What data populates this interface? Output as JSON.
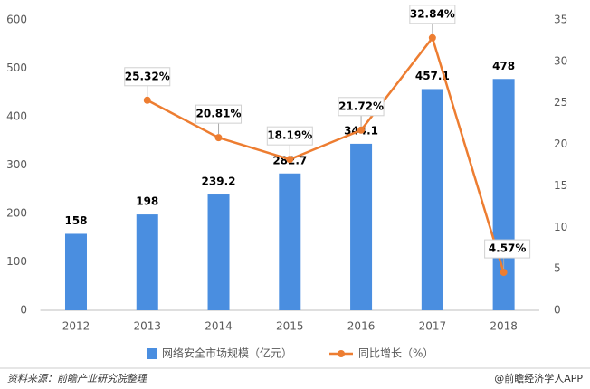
{
  "chart_data": {
    "type": "bar",
    "categories": [
      "2012",
      "2013",
      "2014",
      "2015",
      "2016",
      "2017",
      "2018"
    ],
    "series": [
      {
        "name": "网络安全市场规模（亿元）",
        "type": "bar",
        "color": "#4a8ee0",
        "values": [
          158,
          198,
          239.2,
          282.7,
          344.1,
          457.1,
          478
        ]
      },
      {
        "name": "同比增长（%）",
        "type": "line",
        "axis": "y2",
        "color": "#ed7d31",
        "values": [
          null,
          25.32,
          20.81,
          18.19,
          21.72,
          32.84,
          4.57
        ],
        "value_labels": [
          null,
          "25.32%",
          "20.81%",
          "18.19%",
          "21.72%",
          "32.84%",
          "4.57%"
        ]
      }
    ],
    "ylim": [
      0,
      600
    ],
    "yticks": [
      0,
      100,
      200,
      300,
      400,
      500,
      600
    ],
    "y2lim": [
      0,
      35
    ],
    "y2ticks": [
      0,
      5,
      10,
      15,
      20,
      25,
      30,
      35
    ],
    "grid": false,
    "source": "资料来源：前瞻产业研究院整理",
    "credit": "@前瞻经济学人APP"
  }
}
